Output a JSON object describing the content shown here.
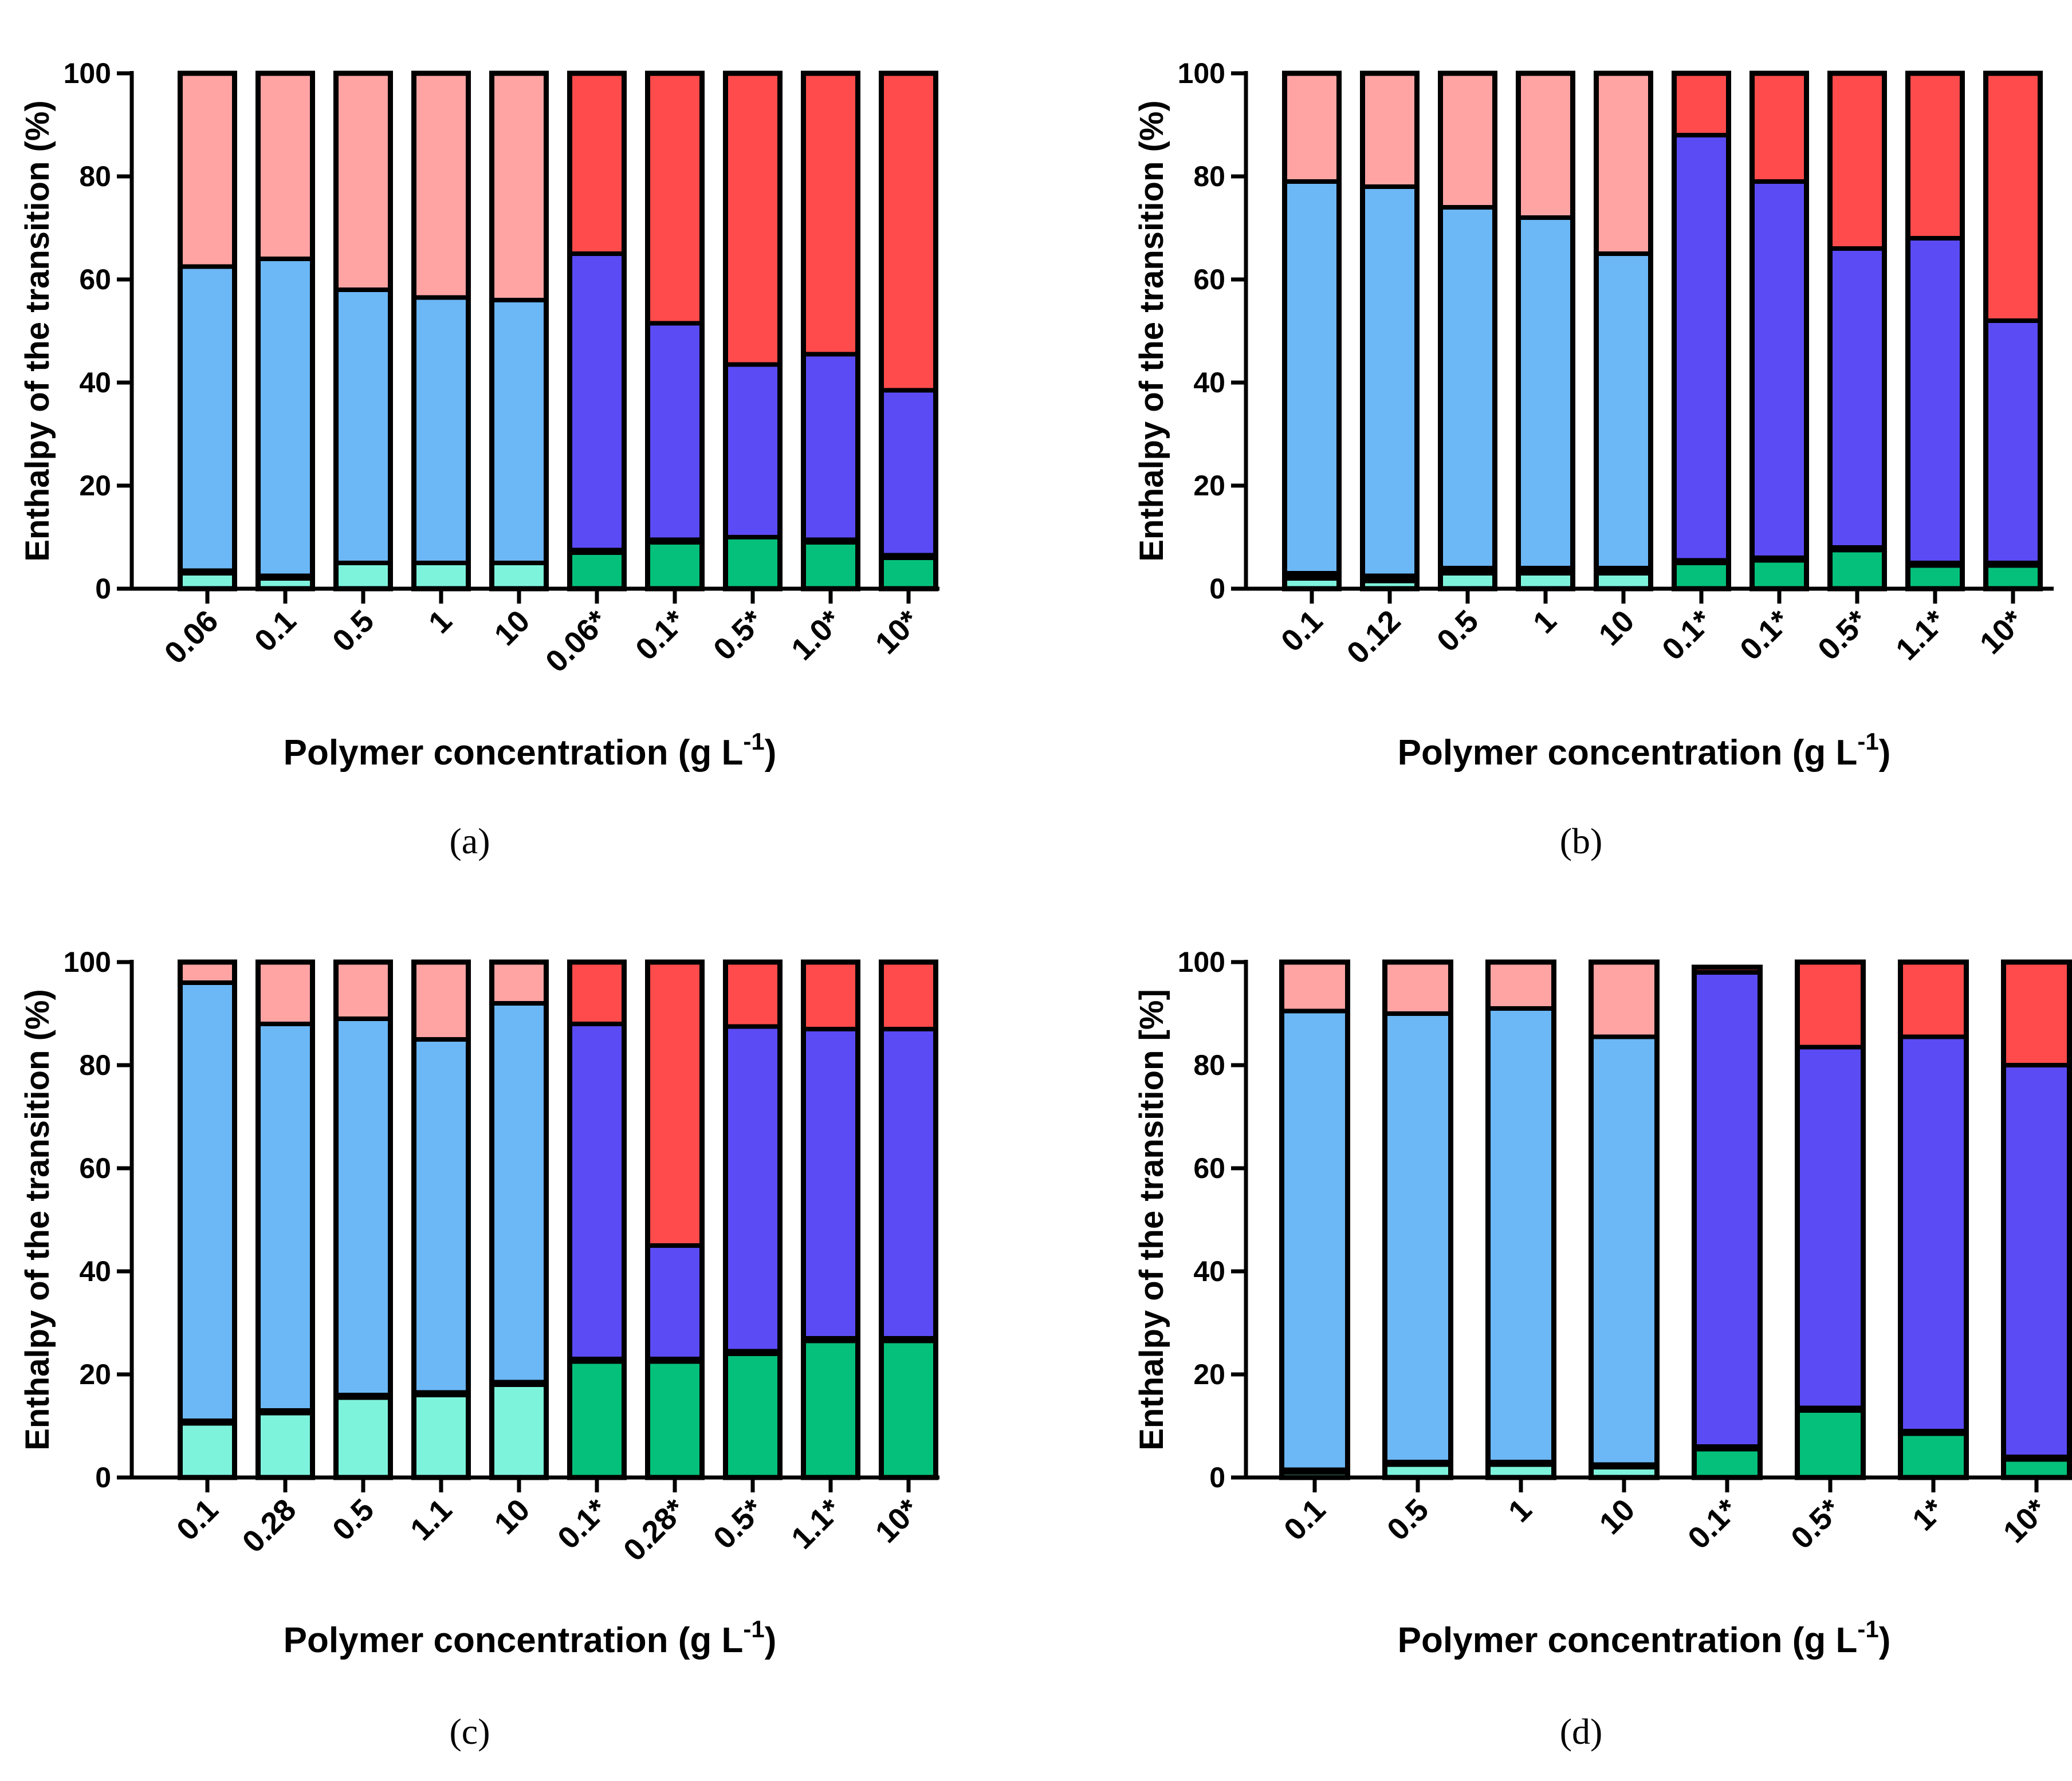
{
  "colors": {
    "light_teal": "#7ef3dc",
    "green": "#05c07a",
    "light_blue": "#6cb7f6",
    "purple": "#5b4bf4",
    "light_pink": "#ffa3a3",
    "red": "#ff4b4b",
    "outline": "#000000"
  },
  "chart_data": [
    {
      "panel": "(a)",
      "type": "bar",
      "stacked": true,
      "ylabel": "Enthalpy of the transition (%)",
      "xlabel_main": "Polymer concentration (g L",
      "xlabel_sup": "-1",
      "xlabel_close": ")",
      "ylim": [
        0,
        100
      ],
      "yticks": [
        "0",
        "20",
        "40",
        "60",
        "80",
        "100"
      ],
      "categories": [
        "0.06",
        "0.1",
        "0.5",
        "1",
        "10",
        "0.06*",
        "0.1*",
        "0.5*",
        "1.0*",
        "10*"
      ],
      "segments": [
        [
          3,
          3.5,
          62.5,
          100
        ],
        [
          2,
          2.5,
          64,
          100
        ],
        [
          5,
          5,
          58,
          100
        ],
        [
          5,
          5,
          56.5,
          100
        ],
        [
          5,
          5,
          56,
          100
        ],
        [
          7,
          7.5,
          65,
          100
        ],
        [
          9,
          9.5,
          51.5,
          100
        ],
        [
          10,
          10,
          43.5,
          100
        ],
        [
          9,
          9.5,
          45.5,
          100
        ],
        [
          6,
          6.5,
          38.5,
          100
        ]
      ]
    },
    {
      "panel": "(b)",
      "type": "bar",
      "stacked": true,
      "ylabel": "Enthalpy of the transition (%)",
      "xlabel_main": "Polymer concentration (g L",
      "xlabel_sup": "-1",
      "xlabel_close": ")",
      "ylim": [
        0,
        100
      ],
      "yticks": [
        "0",
        "20",
        "40",
        "60",
        "80",
        "100"
      ],
      "categories": [
        "0.1",
        "0.12",
        "0.5",
        "1",
        "10",
        "0.1*",
        "0.1*",
        "0.5*",
        "1.1*",
        "10*"
      ],
      "segments": [
        [
          2,
          3,
          79,
          100
        ],
        [
          1.5,
          2.5,
          78,
          100
        ],
        [
          3,
          4,
          74,
          100
        ],
        [
          3,
          4,
          72,
          100
        ],
        [
          3,
          4,
          65,
          100
        ],
        [
          5,
          5.5,
          88,
          100
        ],
        [
          5.5,
          6,
          79,
          100
        ],
        [
          7.5,
          8,
          66,
          100
        ],
        [
          4.5,
          5,
          68,
          100
        ],
        [
          4.5,
          5,
          52,
          100
        ]
      ]
    },
    {
      "panel": "(c)",
      "type": "bar",
      "stacked": true,
      "ylabel": "Enthalpy of the transition (%)",
      "xlabel_main": "Polymer concentration (g L",
      "xlabel_sup": "-1",
      "xlabel_close": ")",
      "ylim": [
        0,
        100
      ],
      "yticks": [
        "0",
        "20",
        "40",
        "60",
        "80",
        "100"
      ],
      "categories": [
        "0.1",
        "0.28",
        "0.5",
        "1.1",
        "10",
        "0.1*",
        "0.28*",
        "0.5*",
        "1.1*",
        "10*"
      ],
      "segments": [
        [
          10.5,
          11,
          96,
          100
        ],
        [
          12.5,
          13,
          88,
          100
        ],
        [
          15.5,
          16,
          89,
          100
        ],
        [
          16,
          16.5,
          85,
          100
        ],
        [
          18,
          18.5,
          92,
          100
        ],
        [
          22.5,
          23,
          88,
          100
        ],
        [
          22.5,
          23,
          45,
          100
        ],
        [
          24,
          24.5,
          87.5,
          100
        ],
        [
          26.5,
          27,
          87,
          100
        ],
        [
          26.5,
          27,
          87,
          100
        ]
      ]
    },
    {
      "panel": "(d)",
      "type": "bar",
      "stacked": true,
      "ylabel": "Enthalpy of the transition [%]",
      "xlabel_main": "Polymer concentration (g L",
      "xlabel_sup": "-1",
      "xlabel_close": ")",
      "ylim": [
        0,
        100
      ],
      "yticks": [
        "0",
        "20",
        "40",
        "60",
        "80",
        "100"
      ],
      "categories": [
        "0.1",
        "0.5",
        "1",
        "10",
        "0.1*",
        "0.5*",
        "1*",
        "10*"
      ],
      "segments": [
        [
          1,
          1.5,
          90.5,
          100
        ],
        [
          2.5,
          3,
          90,
          100
        ],
        [
          2.5,
          3,
          91,
          100
        ],
        [
          2,
          2.5,
          85.5,
          100
        ],
        [
          5.5,
          6,
          98,
          99
        ],
        [
          13,
          13.5,
          83.5,
          100
        ],
        [
          8.5,
          9,
          85.5,
          100
        ],
        [
          3.5,
          4,
          80,
          100
        ]
      ]
    }
  ]
}
